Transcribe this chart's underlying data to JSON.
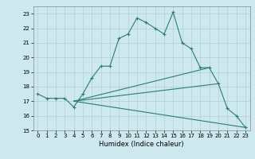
{
  "xlabel": "Humidex (Indice chaleur)",
  "bg_color": "#cde8ee",
  "grid_color": "#b8d8df",
  "line_color": "#2e7d6e",
  "xlim": [
    -0.5,
    23.5
  ],
  "ylim": [
    15,
    23.5
  ],
  "yticks": [
    15,
    16,
    17,
    18,
    19,
    20,
    21,
    22,
    23
  ],
  "xticks": [
    0,
    1,
    2,
    3,
    4,
    5,
    6,
    7,
    8,
    9,
    10,
    11,
    12,
    13,
    14,
    15,
    16,
    17,
    18,
    19,
    20,
    21,
    22,
    23
  ],
  "main_line": {
    "x": [
      0,
      1,
      2,
      3,
      4,
      5,
      6,
      7,
      8,
      9,
      10,
      11,
      12,
      13,
      14,
      15,
      16,
      17,
      18,
      19,
      20,
      21,
      22,
      23
    ],
    "y": [
      17.5,
      17.2,
      17.2,
      17.2,
      16.6,
      17.5,
      18.6,
      19.4,
      19.4,
      21.3,
      21.6,
      22.7,
      22.4,
      22.0,
      21.6,
      23.1,
      21.0,
      20.6,
      19.3,
      19.3,
      18.2,
      16.5,
      16.0,
      15.2
    ]
  },
  "fan_lines": [
    {
      "x": [
        4,
        23
      ],
      "y": [
        17.0,
        15.2
      ]
    },
    {
      "x": [
        4,
        20
      ],
      "y": [
        17.0,
        18.2
      ]
    },
    {
      "x": [
        4,
        19
      ],
      "y": [
        17.0,
        19.3
      ]
    }
  ]
}
